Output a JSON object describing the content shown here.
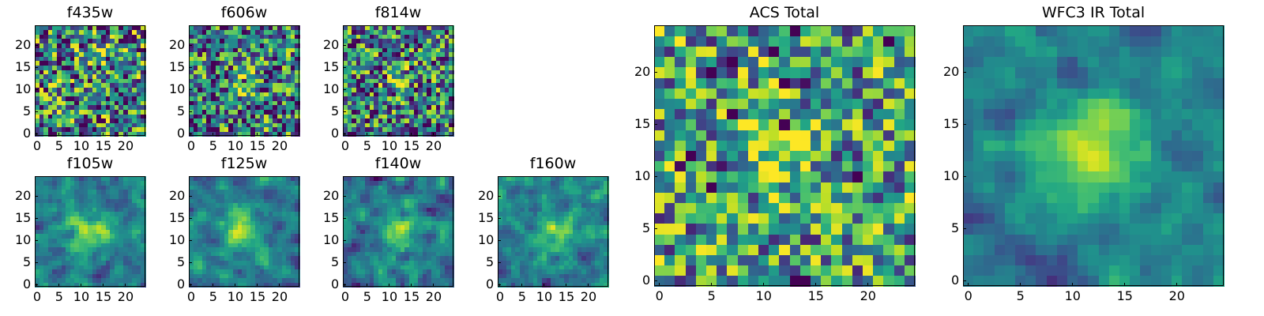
{
  "chart_data": [
    {
      "type": "heatmap",
      "title": "f435w",
      "seed": 11,
      "grid": 25,
      "xticks": [
        0,
        5,
        10,
        15,
        20
      ],
      "yticks": [
        0,
        5,
        10,
        15,
        20
      ],
      "xlim": [
        0,
        24
      ],
      "ylim": [
        0,
        24
      ],
      "blob": {
        "cx": 15,
        "cy": 19,
        "amp": 0.15,
        "sigma": 2.5
      },
      "noise": 0.55,
      "smooth": 0,
      "base": 0.45,
      "colormap": "viridis"
    },
    {
      "type": "heatmap",
      "title": "f606w",
      "seed": 23,
      "grid": 25,
      "xticks": [
        0,
        5,
        10,
        15,
        20
      ],
      "yticks": [
        0,
        5,
        10,
        15,
        20
      ],
      "xlim": [
        0,
        24
      ],
      "ylim": [
        0,
        24
      ],
      "blob": {
        "cx": 11,
        "cy": 12,
        "amp": 0.35,
        "sigma": 2.0
      },
      "noise": 0.5,
      "smooth": 0,
      "base": 0.45,
      "colormap": "viridis"
    },
    {
      "type": "heatmap",
      "title": "f814w",
      "seed": 37,
      "grid": 25,
      "xticks": [
        0,
        5,
        10,
        15,
        20
      ],
      "yticks": [
        0,
        5,
        10,
        15,
        20
      ],
      "xlim": [
        0,
        24
      ],
      "ylim": [
        0,
        24
      ],
      "blob": {
        "cx": 12,
        "cy": 12,
        "amp": 0.35,
        "sigma": 2.0
      },
      "noise": 0.5,
      "smooth": 0,
      "base": 0.45,
      "colormap": "viridis"
    },
    {
      "type": "heatmap",
      "title": "f105w",
      "seed": 41,
      "grid": 25,
      "xticks": [
        0,
        5,
        10,
        15,
        20
      ],
      "yticks": [
        0,
        5,
        10,
        15,
        20
      ],
      "xlim": [
        0,
        24
      ],
      "ylim": [
        0,
        24
      ],
      "blob": {
        "cx": 12,
        "cy": 12,
        "amp": 0.4,
        "sigma": 3.0
      },
      "noise": 0.45,
      "smooth": 1,
      "base": 0.45,
      "colormap": "viridis"
    },
    {
      "type": "heatmap",
      "title": "f125w",
      "seed": 53,
      "grid": 25,
      "xticks": [
        0,
        5,
        10,
        15,
        20
      ],
      "yticks": [
        0,
        5,
        10,
        15,
        20
      ],
      "xlim": [
        0,
        24
      ],
      "ylim": [
        0,
        24
      ],
      "blob": {
        "cx": 12,
        "cy": 12,
        "amp": 0.45,
        "sigma": 2.8
      },
      "noise": 0.45,
      "smooth": 1,
      "base": 0.45,
      "colormap": "viridis"
    },
    {
      "type": "heatmap",
      "title": "f140w",
      "seed": 67,
      "grid": 25,
      "xticks": [
        0,
        5,
        10,
        15,
        20
      ],
      "yticks": [
        0,
        5,
        10,
        15,
        20
      ],
      "xlim": [
        0,
        24
      ],
      "ylim": [
        0,
        24
      ],
      "blob": {
        "cx": 12,
        "cy": 12,
        "amp": 0.45,
        "sigma": 2.8
      },
      "noise": 0.45,
      "smooth": 1,
      "base": 0.45,
      "colormap": "viridis"
    },
    {
      "type": "heatmap",
      "title": "f160w",
      "seed": 79,
      "grid": 25,
      "xticks": [
        0,
        5,
        10,
        15,
        20
      ],
      "yticks": [
        0,
        5,
        10,
        15,
        20
      ],
      "xlim": [
        0,
        24
      ],
      "ylim": [
        0,
        24
      ],
      "blob": {
        "cx": 12,
        "cy": 12,
        "amp": 0.4,
        "sigma": 2.8
      },
      "noise": 0.5,
      "smooth": 1,
      "base": 0.45,
      "colormap": "viridis"
    },
    {
      "type": "heatmap",
      "title": "ACS Total",
      "seed": 97,
      "grid": 25,
      "xticks": [
        0,
        5,
        10,
        15,
        20
      ],
      "yticks": [
        0,
        5,
        10,
        15,
        20
      ],
      "xlim": [
        0,
        24
      ],
      "ylim": [
        0,
        24
      ],
      "blob": {
        "cx": 11,
        "cy": 12,
        "amp": 0.45,
        "sigma": 2.0
      },
      "noise": 0.45,
      "smooth": 0,
      "base": 0.55,
      "colormap": "viridis"
    },
    {
      "type": "heatmap",
      "title": "WFC3 IR Total",
      "seed": 113,
      "grid": 25,
      "xticks": [
        0,
        5,
        10,
        15,
        20
      ],
      "yticks": [
        0,
        5,
        10,
        15,
        20
      ],
      "xlim": [
        0,
        24
      ],
      "ylim": [
        0,
        24
      ],
      "blob": {
        "cx": 12,
        "cy": 12,
        "amp": 0.55,
        "sigma": 3.0
      },
      "noise": 0.35,
      "smooth": 1,
      "base": 0.45,
      "colormap": "viridis"
    }
  ]
}
